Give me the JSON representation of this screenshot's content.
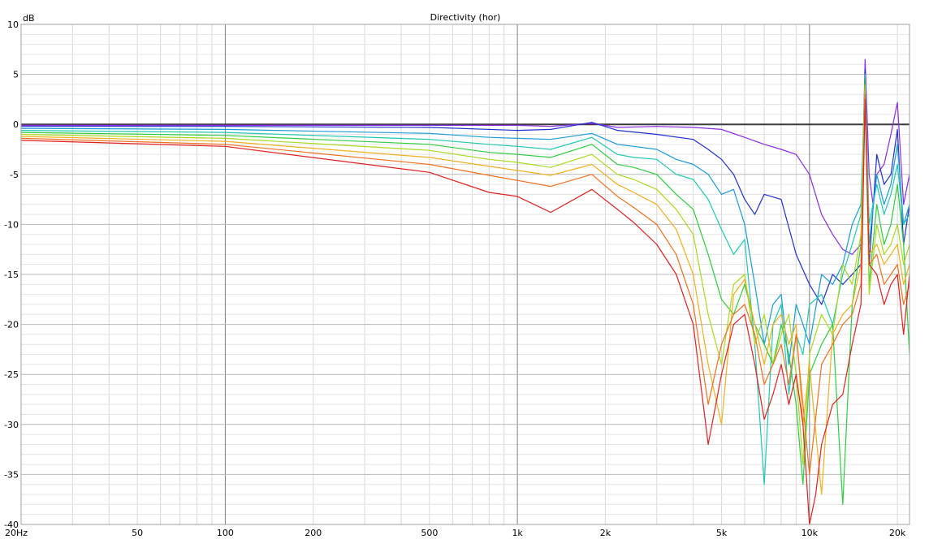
{
  "chart_data": {
    "type": "line",
    "title": "Directivity (hor)",
    "ylabel": "dB",
    "xlabel": "",
    "xscale": "log",
    "xlim": [
      20,
      22000
    ],
    "ylim": [
      -40,
      10
    ],
    "x_tick_labels": [
      {
        "value": 20,
        "label": "20Hz"
      },
      {
        "value": 50,
        "label": "50"
      },
      {
        "value": 100,
        "label": "100"
      },
      {
        "value": 200,
        "label": "200"
      },
      {
        "value": 500,
        "label": "500"
      },
      {
        "value": 1000,
        "label": "1k"
      },
      {
        "value": 2000,
        "label": "2k"
      },
      {
        "value": 5000,
        "label": "5k"
      },
      {
        "value": 10000,
        "label": "10k"
      },
      {
        "value": 20000,
        "label": "20k"
      }
    ],
    "y_tick_labels": [
      "10",
      "5",
      "0",
      "-5",
      "-10",
      "-15",
      "-20",
      "-25",
      "-30",
      "-35",
      "-40"
    ],
    "y_ticks": [
      10,
      5,
      0,
      -5,
      -10,
      -15,
      -20,
      -25,
      -30,
      -35,
      -40
    ],
    "grid": true,
    "legend": "none",
    "reference_line": 0,
    "series": [
      {
        "color": "#3a3a3a",
        "x": [
          20,
          1000,
          2000,
          5000,
          10000,
          14000,
          15500,
          16000,
          16500,
          18000,
          20000,
          22000
        ],
        "y": [
          0,
          0,
          0,
          0,
          0,
          0,
          0,
          0,
          0,
          0,
          0,
          0
        ]
      },
      {
        "color": "#8a2be2",
        "x": [
          20,
          100,
          500,
          1000,
          1300,
          1800,
          2200,
          3000,
          4000,
          5000,
          6000,
          7000,
          8000,
          9000,
          10000,
          11000,
          12000,
          13000,
          14000,
          15000,
          15500,
          16000,
          16500,
          17000,
          18000,
          19000,
          20000,
          21000,
          22000
        ],
        "y": [
          -0.1,
          -0.1,
          -0.1,
          -0.1,
          -0.2,
          0.1,
          -0.3,
          -0.2,
          -0.3,
          -0.5,
          -1.3,
          -2.0,
          -2.5,
          -3.0,
          -5.0,
          -9.0,
          -11.0,
          -12.5,
          -13.0,
          -12.0,
          6.5,
          -5.0,
          -8.0,
          -5.0,
          -4.0,
          -1.0,
          2.2,
          -8.0,
          -5.0
        ]
      },
      {
        "color": "#1e2ecc",
        "x": [
          20,
          100,
          500,
          1000,
          1300,
          1800,
          2200,
          3000,
          4000,
          4500,
          5000,
          5500,
          6000,
          6500,
          7000,
          8000,
          9000,
          10000,
          11000,
          12000,
          13000,
          14000,
          15000,
          15500,
          16000,
          17000,
          18000,
          19000,
          20000,
          21000,
          22000
        ],
        "y": [
          -0.2,
          -0.2,
          -0.3,
          -0.6,
          -0.5,
          0.2,
          -0.6,
          -1.0,
          -1.5,
          -2.5,
          -3.5,
          -5.0,
          -7.5,
          -9.0,
          -7.0,
          -7.5,
          -13.0,
          -16.0,
          -18.0,
          -15.0,
          -16.0,
          -15.0,
          -14.0,
          5.5,
          -14.0,
          -3.0,
          -6.0,
          -5.0,
          -0.5,
          -12.0,
          -8.0
        ]
      },
      {
        "color": "#1a9ad6",
        "x": [
          20,
          100,
          500,
          800,
          1000,
          1300,
          1800,
          2200,
          2500,
          3000,
          3500,
          4000,
          4500,
          5000,
          5500,
          6000,
          6500,
          7000,
          7500,
          8000,
          8500,
          9000,
          9500,
          10000,
          11000,
          12000,
          13000,
          14000,
          15000,
          15500,
          16000,
          17000,
          18000,
          19000,
          20000,
          21000,
          22000
        ],
        "y": [
          -0.4,
          -0.5,
          -0.9,
          -1.3,
          -1.4,
          -1.5,
          -0.9,
          -2.0,
          -2.2,
          -2.5,
          -3.5,
          -4.0,
          -5.0,
          -7.0,
          -6.5,
          -10.0,
          -16.0,
          -22.0,
          -18.0,
          -17.0,
          -24.0,
          -18.0,
          -20.0,
          -22.0,
          -15.0,
          -16.0,
          -14.0,
          -10.0,
          -8.0,
          4.0,
          -12.0,
          -5.0,
          -8.0,
          -6.0,
          -2.0,
          -10.0,
          -8.0
        ]
      },
      {
        "color": "#20c8b0",
        "x": [
          20,
          100,
          500,
          800,
          1000,
          1300,
          1800,
          2200,
          2500,
          3000,
          3500,
          4000,
          4500,
          5000,
          5500,
          6000,
          6500,
          7000,
          7500,
          8000,
          8500,
          9000,
          9500,
          10000,
          11000,
          12000,
          13000,
          14000,
          15000,
          15500,
          16000,
          17000,
          18000,
          19000,
          20000,
          21000,
          22000
        ],
        "y": [
          -0.6,
          -0.8,
          -1.5,
          -2.0,
          -2.2,
          -2.5,
          -1.3,
          -3.0,
          -3.3,
          -3.5,
          -5.0,
          -5.5,
          -7.5,
          -10.5,
          -13.0,
          -11.5,
          -22.0,
          -36.0,
          -20.0,
          -18.0,
          -27.0,
          -21.0,
          -23.0,
          -18.0,
          -17.0,
          -20.0,
          -15.0,
          -12.0,
          -9.0,
          5.0,
          -10.0,
          -6.0,
          -9.0,
          -7.0,
          -4.0,
          -10.0,
          -9.0
        ]
      },
      {
        "color": "#2ecc40",
        "x": [
          20,
          100,
          500,
          800,
          1000,
          1300,
          1800,
          2200,
          2500,
          3000,
          3500,
          4000,
          4500,
          5000,
          5500,
          6000,
          6500,
          7000,
          7500,
          8000,
          8500,
          9000,
          9500,
          10000,
          11000,
          12000,
          13000,
          14000,
          15000,
          15500,
          16000,
          17000,
          18000,
          19000,
          20000,
          21000,
          22000
        ],
        "y": [
          -0.8,
          -1.1,
          -2.0,
          -2.8,
          -3.0,
          -3.3,
          -2.0,
          -4.0,
          -4.3,
          -5.0,
          -7.0,
          -8.5,
          -13.0,
          -17.5,
          -19.0,
          -16.0,
          -20.0,
          -22.0,
          -24.0,
          -20.0,
          -23.0,
          -28.0,
          -36.0,
          -25.0,
          -22.0,
          -20.0,
          -38.0,
          -18.0,
          -12.0,
          4.5,
          -16.0,
          -8.0,
          -12.0,
          -10.0,
          -6.0,
          -12.0,
          -23.0
        ]
      },
      {
        "color": "#a8d820",
        "x": [
          20,
          100,
          500,
          800,
          1000,
          1300,
          1800,
          2200,
          2500,
          3000,
          3500,
          4000,
          4500,
          5000,
          5500,
          6000,
          6500,
          7000,
          7500,
          8000,
          8500,
          9000,
          9500,
          10000,
          11000,
          12000,
          13000,
          14000,
          15000,
          15500,
          16000,
          17000,
          18000,
          19000,
          20000,
          21000,
          22000
        ],
        "y": [
          -1.0,
          -1.4,
          -2.6,
          -3.5,
          -3.8,
          -4.3,
          -3.0,
          -5.0,
          -5.5,
          -6.5,
          -8.5,
          -11.0,
          -19.0,
          -24.0,
          -16.0,
          -15.0,
          -22.0,
          -19.0,
          -24.0,
          -21.0,
          -19.0,
          -25.0,
          -34.0,
          -23.0,
          -19.0,
          -21.0,
          -14.0,
          -16.0,
          -11.0,
          4.0,
          -17.0,
          -10.0,
          -13.0,
          -12.0,
          -10.0,
          -14.0,
          -12.0
        ]
      },
      {
        "color": "#f0b020",
        "x": [
          20,
          100,
          500,
          800,
          1000,
          1300,
          1800,
          2200,
          2500,
          3000,
          3500,
          4000,
          4500,
          5000,
          5500,
          6000,
          6500,
          7000,
          7500,
          8000,
          8500,
          9000,
          9500,
          10000,
          11000,
          12000,
          13000,
          14000,
          15000,
          15500,
          16000,
          17000,
          18000,
          19000,
          20000,
          21000,
          22000
        ],
        "y": [
          -1.2,
          -1.7,
          -3.3,
          -4.2,
          -4.6,
          -5.1,
          -4.0,
          -6.0,
          -6.8,
          -8.0,
          -10.5,
          -15.0,
          -24.0,
          -30.0,
          -17.0,
          -15.5,
          -20.0,
          -24.0,
          -20.0,
          -19.0,
          -22.0,
          -20.0,
          -30.0,
          -24.0,
          -37.0,
          -21.0,
          -19.0,
          -18.0,
          -14.0,
          3.5,
          -13.0,
          -12.0,
          -14.0,
          -13.0,
          -12.0,
          -16.0,
          -14.0
        ]
      },
      {
        "color": "#f07020",
        "x": [
          20,
          100,
          500,
          800,
          1000,
          1300,
          1800,
          2200,
          2500,
          3000,
          3500,
          4000,
          4500,
          5000,
          5500,
          6000,
          6500,
          7000,
          7500,
          8000,
          8500,
          9000,
          9500,
          10000,
          11000,
          12000,
          13000,
          14000,
          15000,
          15500,
          16000,
          17000,
          18000,
          19000,
          20000,
          21000,
          22000
        ],
        "y": [
          -1.4,
          -2.0,
          -4.0,
          -5.1,
          -5.6,
          -6.2,
          -5.0,
          -7.2,
          -8.3,
          -10.0,
          -13.0,
          -18.0,
          -28.0,
          -22.0,
          -19.0,
          -18.0,
          -21.0,
          -26.0,
          -24.0,
          -22.0,
          -26.0,
          -21.0,
          -28.0,
          -35.0,
          -24.0,
          -22.0,
          -20.0,
          -19.0,
          -16.0,
          3.0,
          -14.0,
          -13.0,
          -16.0,
          -15.0,
          -14.0,
          -18.0,
          -16.0
        ]
      },
      {
        "color": "#e02020",
        "x": [
          20,
          100,
          500,
          800,
          1000,
          1300,
          1800,
          2200,
          2500,
          3000,
          3500,
          4000,
          4500,
          5000,
          5500,
          6000,
          6500,
          7000,
          7500,
          8000,
          8500,
          9000,
          9500,
          10000,
          10500,
          11000,
          12000,
          13000,
          14000,
          15000,
          15500,
          16000,
          17000,
          18000,
          19000,
          20000,
          21000,
          22000
        ],
        "y": [
          -1.6,
          -2.2,
          -4.8,
          -6.8,
          -7.2,
          -8.8,
          -6.5,
          -8.5,
          -9.8,
          -12.0,
          -15.0,
          -20.0,
          -32.0,
          -25.0,
          -20.0,
          -19.0,
          -24.0,
          -29.5,
          -27.0,
          -24.0,
          -28.0,
          -25.0,
          -30.0,
          -40.0,
          -37.0,
          -32.0,
          -28.0,
          -27.0,
          -22.0,
          -18.0,
          2.5,
          -14.0,
          -15.0,
          -18.0,
          -16.0,
          -15.0,
          -21.0,
          -15.0
        ]
      }
    ]
  }
}
